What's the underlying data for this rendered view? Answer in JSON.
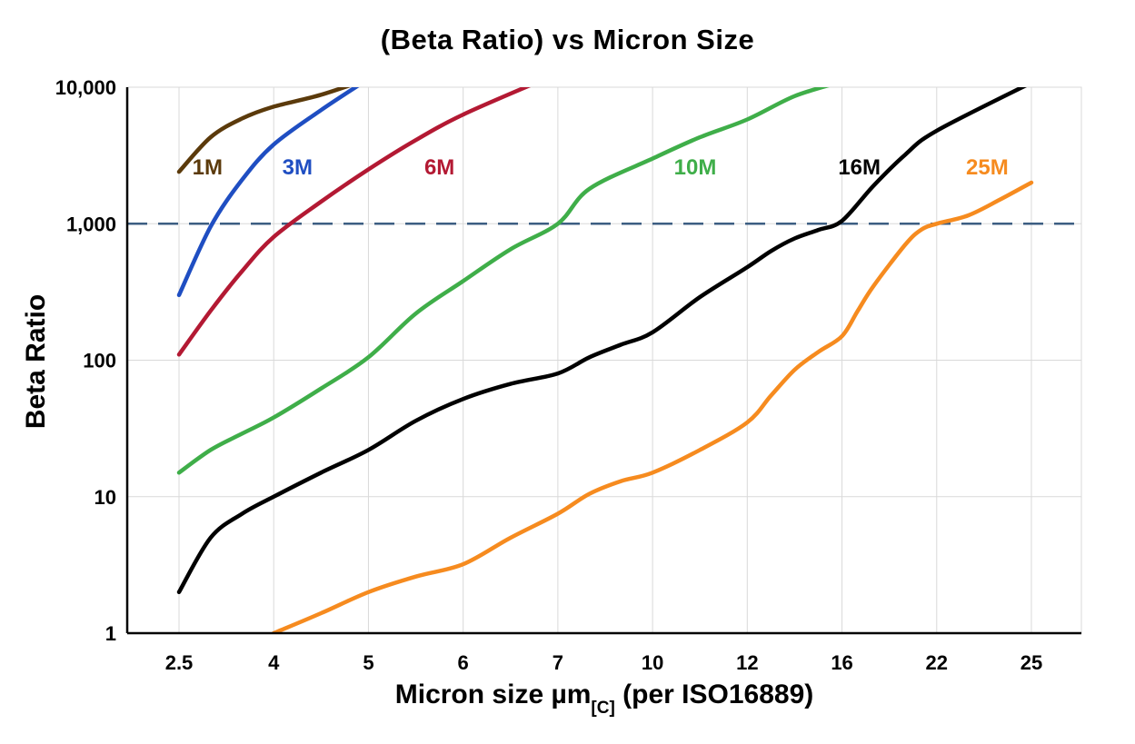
{
  "chart_data": {
    "type": "line",
    "title": "(Beta Ratio) vs Micron Size",
    "ylabel": "Beta Ratio",
    "xlabel_parts": [
      "Micron size µm",
      "[C]",
      " (per ISO16889)"
    ],
    "x_axis": {
      "scale": "categorical",
      "categories": [
        2.5,
        4,
        5,
        6,
        7,
        10,
        12,
        16,
        22,
        25
      ],
      "tick_labels": [
        "2.5",
        "4",
        "5",
        "6",
        "7",
        "10",
        "12",
        "16",
        "22",
        "25"
      ]
    },
    "y_axis": {
      "scale": "log",
      "range": [
        1,
        10000
      ],
      "ticks": [
        1,
        10,
        100,
        1000,
        10000
      ],
      "tick_labels": [
        "1",
        "10",
        "100",
        "1,000",
        "10,000"
      ]
    },
    "grid": {
      "show": true,
      "color": "#d9d9d9"
    },
    "threshold_line": {
      "value": 1000,
      "color": "#3c5e82",
      "style": "dashed"
    },
    "series": [
      {
        "name": "1M",
        "color": "#5b3a0b",
        "label_pos": [
          2.95,
          2300
        ],
        "points": [
          [
            2.5,
            2400
          ],
          [
            3,
            4300
          ],
          [
            3.5,
            5900
          ],
          [
            4,
            7200
          ],
          [
            4.5,
            8800
          ],
          [
            5,
            11500
          ]
        ]
      },
      {
        "name": "3M",
        "color": "#1f4ec2",
        "label_pos": [
          4.25,
          2300
        ],
        "points": [
          [
            2.5,
            300
          ],
          [
            3,
            950
          ],
          [
            3.5,
            2100
          ],
          [
            4,
            3800
          ],
          [
            4.5,
            6800
          ],
          [
            5,
            11500
          ]
        ]
      },
      {
        "name": "6M",
        "color": "#b31933",
        "label_pos": [
          5.75,
          2300
        ],
        "points": [
          [
            2.5,
            110
          ],
          [
            3,
            230
          ],
          [
            3.5,
            450
          ],
          [
            4,
            800
          ],
          [
            4.5,
            1450
          ],
          [
            5,
            2500
          ],
          [
            5.5,
            4100
          ],
          [
            6,
            6300
          ],
          [
            6.8,
            11000
          ]
        ]
      },
      {
        "name": "10M",
        "color": "#3fae49",
        "label_pos": [
          10.9,
          2300
        ],
        "points": [
          [
            2.5,
            15
          ],
          [
            3,
            22
          ],
          [
            3.5,
            29
          ],
          [
            4,
            38
          ],
          [
            4.5,
            62
          ],
          [
            5,
            105
          ],
          [
            5.5,
            220
          ],
          [
            6,
            380
          ],
          [
            6.5,
            650
          ],
          [
            7,
            1000
          ],
          [
            8,
            1800
          ],
          [
            10,
            3000
          ],
          [
            11,
            4300
          ],
          [
            12,
            5800
          ],
          [
            14,
            8600
          ],
          [
            16,
            11000
          ]
        ]
      },
      {
        "name": "16M",
        "color": "#000000",
        "label_pos": [
          17.1,
          2300
        ],
        "points": [
          [
            2.5,
            2
          ],
          [
            3,
            5
          ],
          [
            3.5,
            7.5
          ],
          [
            4,
            10
          ],
          [
            4.5,
            15
          ],
          [
            5,
            22
          ],
          [
            5.5,
            36
          ],
          [
            6,
            52
          ],
          [
            6.5,
            67
          ],
          [
            7,
            80
          ],
          [
            8,
            105
          ],
          [
            9,
            130
          ],
          [
            10,
            160
          ],
          [
            11,
            290
          ],
          [
            12,
            480
          ],
          [
            13,
            630
          ],
          [
            14,
            780
          ],
          [
            15,
            900
          ],
          [
            16,
            1050
          ],
          [
            18,
            1900
          ],
          [
            20,
            3200
          ],
          [
            22,
            4800
          ],
          [
            25,
            10800
          ]
        ]
      },
      {
        "name": "25M",
        "color": "#f68b1f",
        "label_pos": [
          23.6,
          2300
        ],
        "points": [
          [
            4,
            1
          ],
          [
            4.5,
            1.4
          ],
          [
            5,
            2
          ],
          [
            5.5,
            2.6
          ],
          [
            6,
            3.2
          ],
          [
            6.5,
            5
          ],
          [
            7,
            7.5
          ],
          [
            8,
            10.5
          ],
          [
            9,
            13
          ],
          [
            10,
            15
          ],
          [
            11,
            22
          ],
          [
            12,
            35
          ],
          [
            13,
            55
          ],
          [
            14,
            85
          ],
          [
            15,
            115
          ],
          [
            16,
            150
          ],
          [
            17,
            230
          ],
          [
            18,
            350
          ],
          [
            20,
            700
          ],
          [
            21,
            900
          ],
          [
            22,
            1000
          ],
          [
            23,
            1150
          ],
          [
            24,
            1500
          ],
          [
            25,
            2000
          ]
        ]
      }
    ]
  }
}
